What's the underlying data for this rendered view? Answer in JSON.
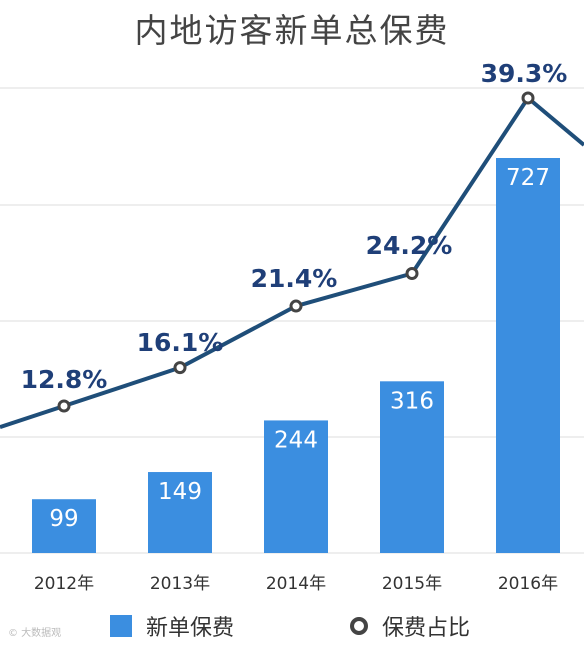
{
  "chart_data": {
    "type": "bar+line",
    "title": "内地访客新单总保费",
    "categories": [
      "2012年",
      "2013年",
      "2014年",
      "2015年",
      "2016年"
    ],
    "series": [
      {
        "name": "新单保费",
        "type": "bar",
        "color": "#3b8ee0",
        "values": [
          99,
          149,
          244,
          316,
          727
        ],
        "labels": [
          "99",
          "149",
          "244",
          "316",
          "727"
        ]
      },
      {
        "name": "保费占比",
        "type": "line",
        "color": "#1f4e79",
        "values": [
          12.8,
          16.1,
          21.4,
          24.2,
          39.3
        ],
        "labels": [
          "12.8%",
          "16.1%",
          "21.4%",
          "24.2%",
          "39.3%"
        ]
      }
    ],
    "grid": true,
    "legend_position": "bottom"
  },
  "watermark": "大数据观"
}
